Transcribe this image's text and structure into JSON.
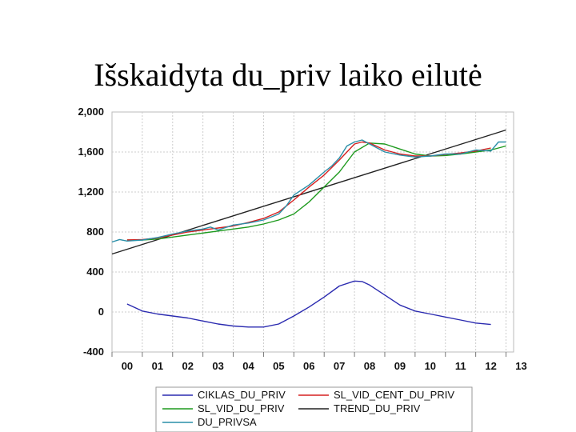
{
  "title": "Išskaidyta du_priv laiko eilutė",
  "chart_data": {
    "type": "line",
    "title": "Išskaidyta du_priv laiko eilutė",
    "ylim": [
      -400,
      2000
    ],
    "yticks": [
      2000,
      1600,
      1200,
      800,
      400,
      0,
      -400
    ],
    "ytick_labels": [
      "2,000",
      "1,600",
      "1,200",
      "800",
      "400",
      "0",
      "-400"
    ],
    "xlim": [
      0,
      13.25
    ],
    "xtick_labels": [
      "00",
      "01",
      "02",
      "03",
      "04",
      "05",
      "06",
      "07",
      "08",
      "09",
      "10",
      "11",
      "12",
      "13"
    ],
    "grid": true,
    "legend_position": "bottom",
    "legend": [
      {
        "name": "CIKLAS_DU_PRIV",
        "color": "#2b2bb0"
      },
      {
        "name": "SL_VID_CENT_DU_PRIV",
        "color": "#d62020"
      },
      {
        "name": "SL_VID_DU_PRIV",
        "color": "#1e9a1e"
      },
      {
        "name": "TREND_DU_PRIV",
        "color": "#222222"
      },
      {
        "name": "DU_PRIVSA",
        "color": "#2a8fa8"
      }
    ],
    "series": [
      {
        "name": "CIKLAS_DU_PRIV",
        "color": "#2b2bb0",
        "x": [
          0.5,
          1.0,
          1.5,
          2.0,
          2.5,
          3.0,
          3.5,
          4.0,
          4.5,
          5.0,
          5.5,
          6.0,
          6.5,
          7.0,
          7.5,
          8.0,
          8.25,
          8.5,
          9.0,
          9.5,
          10.0,
          10.5,
          11.0,
          11.5,
          12.0,
          12.5
        ],
        "y": [
          80,
          10,
          -20,
          -40,
          -60,
          -90,
          -120,
          -140,
          -150,
          -150,
          -120,
          -40,
          50,
          150,
          260,
          310,
          305,
          270,
          170,
          70,
          10,
          -20,
          -50,
          -80,
          -110,
          -125
        ]
      },
      {
        "name": "SL_VID_CENT_DU_PRIV",
        "color": "#d62020",
        "x": [
          0.5,
          1.0,
          1.5,
          2.0,
          2.5,
          3.0,
          3.5,
          4.0,
          4.5,
          5.0,
          5.5,
          6.0,
          6.5,
          7.0,
          7.5,
          8.0,
          8.25,
          8.5,
          9.0,
          9.5,
          10.0,
          10.5,
          11.0,
          11.5,
          12.0,
          12.5
        ],
        "y": [
          720,
          725,
          740,
          770,
          800,
          820,
          840,
          860,
          895,
          935,
          1000,
          1120,
          1250,
          1370,
          1520,
          1680,
          1700,
          1690,
          1620,
          1580,
          1560,
          1560,
          1575,
          1590,
          1610,
          1640
        ]
      },
      {
        "name": "SL_VID_DU_PRIV",
        "color": "#1e9a1e",
        "x": [
          0.5,
          1.0,
          1.5,
          2.0,
          2.5,
          3.0,
          3.5,
          4.0,
          4.5,
          5.0,
          5.5,
          6.0,
          6.5,
          7.0,
          7.5,
          8.0,
          8.5,
          9.0,
          9.5,
          10.0,
          10.5,
          11.0,
          11.5,
          12.0,
          12.5,
          13.0
        ],
        "y": [
          720,
          720,
          730,
          750,
          770,
          790,
          810,
          830,
          850,
          880,
          920,
          980,
          1100,
          1250,
          1400,
          1600,
          1690,
          1680,
          1630,
          1580,
          1560,
          1565,
          1580,
          1600,
          1620,
          1660
        ]
      },
      {
        "name": "TREND_DU_PRIV",
        "color": "#222222",
        "x": [
          0.0,
          13.0
        ],
        "y": [
          580,
          1820
        ]
      },
      {
        "name": "DU_PRIVSA",
        "color": "#2a8fa8",
        "x": [
          0.0,
          0.25,
          0.5,
          1.0,
          1.5,
          2.0,
          2.5,
          3.0,
          3.25,
          3.5,
          4.0,
          4.5,
          5.0,
          5.5,
          5.75,
          6.0,
          6.5,
          7.0,
          7.25,
          7.5,
          7.75,
          8.0,
          8.25,
          8.5,
          9.0,
          9.5,
          10.0,
          10.5,
          11.0,
          11.5,
          12.0,
          12.5,
          12.75,
          13.0
        ],
        "y": [
          700,
          725,
          710,
          720,
          745,
          780,
          810,
          830,
          850,
          820,
          870,
          890,
          920,
          980,
          1060,
          1170,
          1270,
          1400,
          1460,
          1540,
          1660,
          1700,
          1720,
          1680,
          1600,
          1570,
          1550,
          1560,
          1580,
          1580,
          1620,
          1610,
          1700,
          1700
        ]
      }
    ]
  }
}
